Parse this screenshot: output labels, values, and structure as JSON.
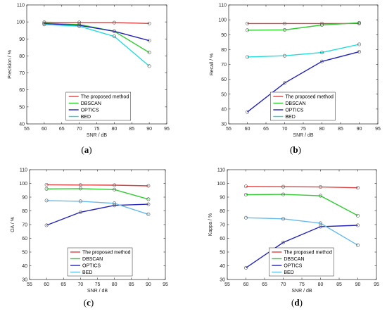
{
  "chart_data": [
    {
      "type": "line",
      "caption": "a",
      "xlabel": "SNR / dB",
      "ylabel": "Precision / %",
      "xlim": [
        55,
        95
      ],
      "ylim": [
        40,
        110
      ],
      "xticks": [
        55,
        60,
        65,
        70,
        75,
        80,
        85,
        90,
        95
      ],
      "yticks": [
        40,
        50,
        60,
        70,
        80,
        90,
        100,
        110
      ],
      "x": [
        60,
        70,
        80,
        90
      ],
      "legend_position": "bottom-center",
      "series": [
        {
          "name": "The proposed method",
          "color": "#e04040",
          "values": [
            99.8,
            99.7,
            99.6,
            99.1
          ]
        },
        {
          "name": "DBSCAN",
          "color": "#33cc33",
          "values": [
            99.2,
            98.5,
            94.5,
            82.0
          ]
        },
        {
          "name": "OPTICS",
          "color": "#2222bb",
          "values": [
            99.0,
            98.0,
            94.5,
            89.0
          ]
        },
        {
          "name": "BED",
          "color": "#22dddd",
          "values": [
            98.5,
            97.5,
            91.5,
            74.0
          ]
        }
      ]
    },
    {
      "type": "line",
      "caption": "b",
      "xlabel": "SNR / dB",
      "ylabel": "Recall / %",
      "xlim": [
        55,
        95
      ],
      "ylim": [
        30,
        110
      ],
      "xticks": [
        55,
        60,
        65,
        70,
        75,
        80,
        85,
        90,
        95
      ],
      "yticks": [
        30,
        40,
        50,
        60,
        70,
        80,
        90,
        100,
        110
      ],
      "x": [
        60,
        70,
        80,
        90
      ],
      "legend_position": "bottom-center",
      "series": [
        {
          "name": "The proposed method",
          "color": "#e04040",
          "values": [
            97.5,
            97.5,
            97.5,
            97.5
          ]
        },
        {
          "name": "DBSCAN",
          "color": "#33cc33",
          "values": [
            93.0,
            93.2,
            96.5,
            98.0
          ]
        },
        {
          "name": "OPTICS",
          "color": "#2222bb",
          "values": [
            38.0,
            57.5,
            72.0,
            78.5
          ]
        },
        {
          "name": "BED",
          "color": "#22dddd",
          "values": [
            75.0,
            75.8,
            78.0,
            83.5
          ]
        }
      ]
    },
    {
      "type": "line",
      "caption": "c",
      "xlabel": "SNR / dB",
      "ylabel": "OA / %",
      "xlim": [
        55,
        95
      ],
      "ylim": [
        30,
        110
      ],
      "xticks": [
        55,
        60,
        65,
        70,
        75,
        80,
        85,
        90,
        95
      ],
      "yticks": [
        30,
        40,
        50,
        60,
        70,
        80,
        90,
        100,
        110
      ],
      "x": [
        60,
        70,
        80,
        90
      ],
      "legend_position": "bottom-center",
      "series": [
        {
          "name": "The proposed method",
          "color": "#e04040",
          "values": [
            99.0,
            98.8,
            98.7,
            98.2
          ]
        },
        {
          "name": "DBSCAN",
          "color": "#33cc33",
          "values": [
            96.0,
            96.2,
            95.5,
            88.5
          ]
        },
        {
          "name": "OPTICS",
          "color": "#2222bb",
          "values": [
            69.5,
            79.0,
            84.0,
            84.8
          ]
        },
        {
          "name": "BED",
          "color": "#66bbee",
          "values": [
            87.5,
            87.0,
            85.5,
            77.5
          ]
        }
      ]
    },
    {
      "type": "line",
      "caption": "d",
      "xlabel": "SNR / dB",
      "ylabel": "Kappa / %",
      "xlim": [
        55,
        95
      ],
      "ylim": [
        30,
        110
      ],
      "xticks": [
        55,
        60,
        65,
        70,
        75,
        80,
        85,
        90,
        95
      ],
      "yticks": [
        30,
        40,
        50,
        60,
        70,
        80,
        90,
        100,
        110
      ],
      "x": [
        60,
        70,
        80,
        90
      ],
      "legend_position": "bottom-center",
      "series": [
        {
          "name": "The proposed method",
          "color": "#e04040",
          "values": [
            97.8,
            97.6,
            97.4,
            96.8
          ]
        },
        {
          "name": "DBSCAN",
          "color": "#33cc33",
          "values": [
            91.8,
            92.0,
            91.0,
            76.5
          ]
        },
        {
          "name": "OPTICS",
          "color": "#2222bb",
          "values": [
            38.5,
            57.0,
            68.5,
            69.5
          ]
        },
        {
          "name": "BED",
          "color": "#66bbee",
          "values": [
            75.0,
            74.2,
            71.0,
            55.0
          ]
        }
      ]
    }
  ]
}
